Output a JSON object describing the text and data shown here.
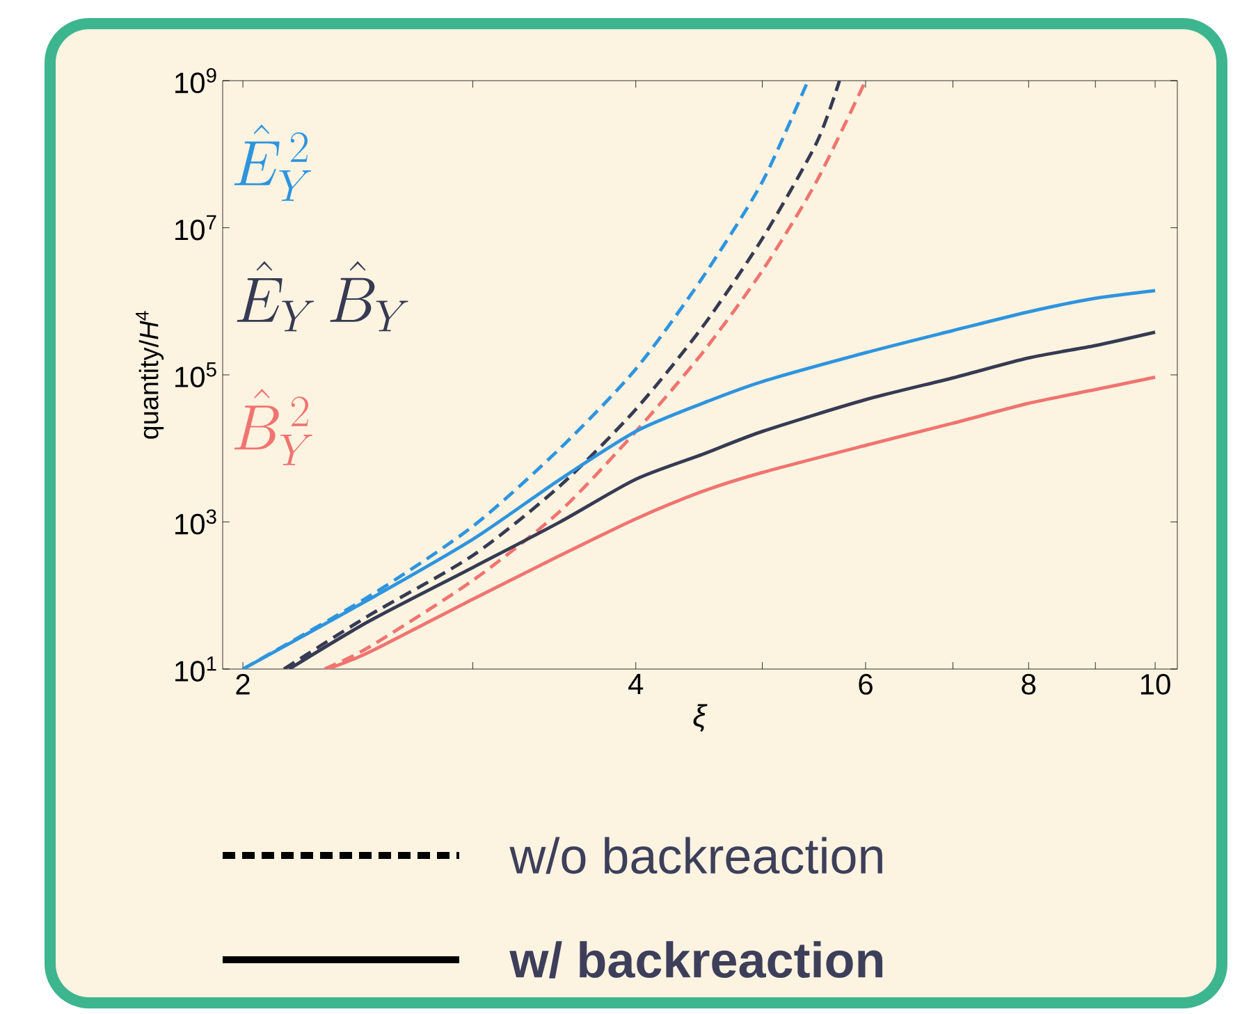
{
  "chart_data": {
    "type": "line",
    "xlabel": "*ξ*",
    "ylabel": "quantity/*H*$^{4}$",
    "log": "xy",
    "xlim": [
      1.93,
      10.4
    ],
    "ylim": [
      10,
      1000000000
    ],
    "xticks": [
      2,
      {
        "value": 3,
        "label": null
      },
      4,
      {
        "value": 5,
        "label": null
      },
      6,
      {
        "value": 7,
        "label": null
      },
      8,
      {
        "value": 9,
        "label": null
      },
      10
    ],
    "yticks": [
      {
        "value": 10,
        "label": "10$^{1}$"
      },
      {
        "value": 1000,
        "label": "10$^{3}$"
      },
      {
        "value": 100000,
        "label": "10$^{5}$"
      },
      {
        "value": 10000000,
        "label": "10$^{7}$"
      },
      {
        "value": 1000000000,
        "label": "10$^{9}$"
      }
    ],
    "series": [
      {
        "color": "#2e94de",
        "line_style": "dashed",
        "x": [
          2,
          2.5,
          3,
          3.5,
          4,
          4.5,
          5,
          5.42
        ],
        "values": [
          10,
          98,
          870,
          10000,
          120000,
          2100000,
          42000000,
          1000000000
        ]
      },
      {
        "color": "#363a52",
        "line_style": "dashed",
        "x": [
          2.15,
          2.5,
          3,
          3.5,
          4,
          4.5,
          5,
          5.5,
          5.73
        ],
        "values": [
          10,
          54,
          350,
          3100,
          34000,
          450000,
          7100000,
          140000000,
          1000000000
        ]
      },
      {
        "color": "#f07470",
        "line_style": "dashed",
        "x": [
          2.31,
          2.5,
          3,
          3.5,
          4,
          4.5,
          5,
          5.5,
          6
        ],
        "values": [
          10,
          20,
          160,
          1400,
          17000,
          200000,
          2600000,
          42000000,
          1000000000
        ]
      },
      {
        "color": "#2e94de",
        "line_style": "solid",
        "x": [
          2,
          2.5,
          3,
          3.5,
          4,
          4.5,
          5,
          6,
          7,
          8,
          9,
          10
        ],
        "values": [
          10,
          89,
          580,
          3800,
          17000,
          41000,
          81000,
          200000,
          400000,
          720000,
          1100000,
          1400000
        ]
      },
      {
        "color": "#363a52",
        "line_style": "solid",
        "x": [
          2.17,
          2.5,
          3,
          3.5,
          4,
          4.5,
          5,
          6,
          7,
          8,
          9,
          10
        ],
        "values": [
          10,
          45,
          240,
          1000,
          3800,
          8300,
          17000,
          46000,
          91000,
          170000,
          250000,
          380000
        ]
      },
      {
        "color": "#f07470",
        "line_style": "solid",
        "x": [
          2.32,
          2.5,
          3,
          3.5,
          4,
          4.5,
          5,
          6,
          7,
          8,
          9,
          10
        ],
        "values": [
          10,
          17,
          89,
          350,
          1100,
          2600,
          4700,
          11000,
          22000,
          41000,
          63000,
          93000
        ]
      }
    ],
    "annotations": [
      "\\hat{E}_Y^{\\,2}",
      "\\hat{E}_Y\\,\\hat{B}_Y",
      "\\hat{B}_Y^{\\,2}",
      "w/o backreaction",
      "w/ backreaction"
    ]
  }
}
